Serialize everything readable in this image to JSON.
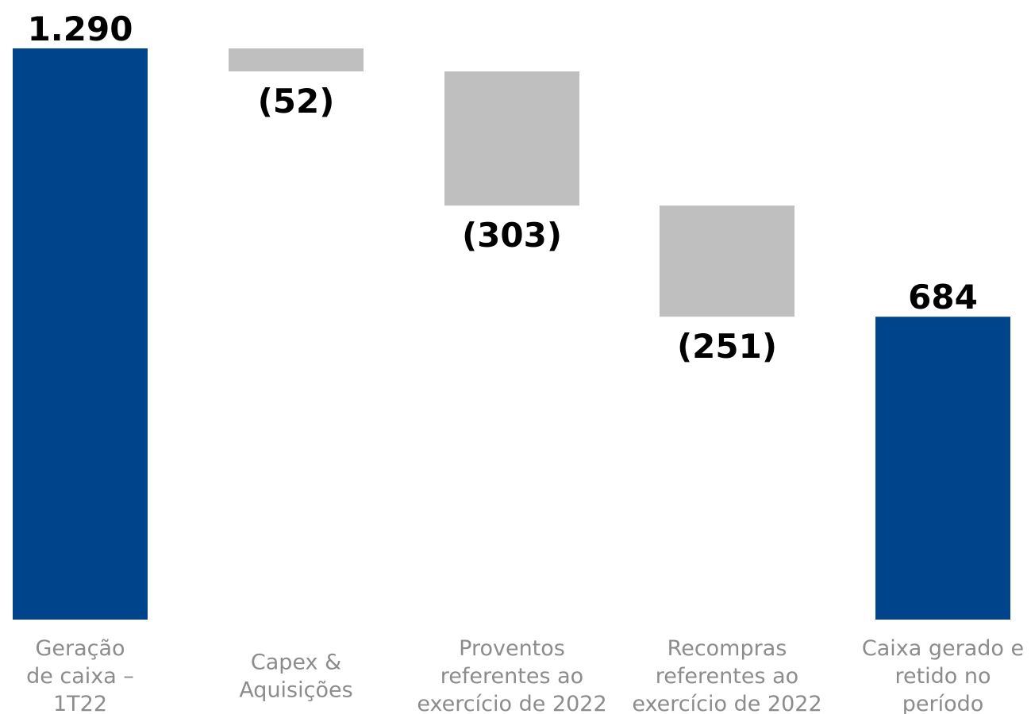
{
  "chart_data": {
    "type": "waterfall",
    "categories": [
      [
        "Geração",
        "de caixa –",
        "1T22"
      ],
      [
        "Capex &",
        "Aquisições"
      ],
      [
        "Proventos",
        "referentes ao",
        "exercício de 2022"
      ],
      [
        "Recompras",
        "referentes ao",
        "exercício de 2022"
      ],
      [
        "Caixa gerado e",
        "retido no",
        "período"
      ]
    ],
    "values": [
      1290,
      -52,
      -303,
      -251,
      684
    ],
    "value_labels": [
      "1.290",
      "(52)",
      "(303)",
      "(251)",
      "684"
    ],
    "kinds": [
      "total",
      "delta",
      "delta",
      "delta",
      "total"
    ],
    "colors": {
      "total": "#00448b",
      "delta": "#bfbfbf"
    },
    "ylim": [
      0,
      1290
    ]
  }
}
